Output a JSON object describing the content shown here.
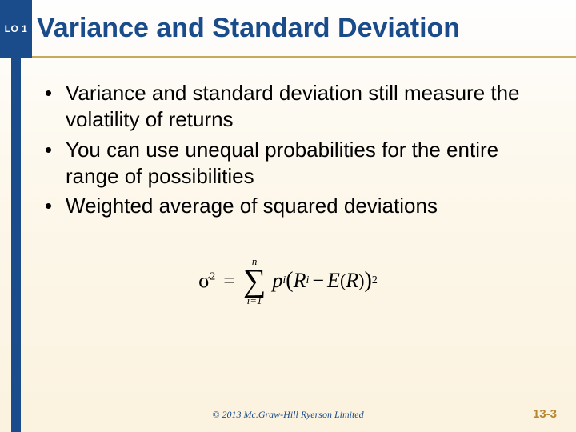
{
  "colors": {
    "accent_blue": "#1a4c8b",
    "accent_gold": "#c9a95a",
    "page_number_gold": "#b8862f",
    "text_black": "#000000",
    "bg_gradient_top": "#fefefe",
    "bg_gradient_bottom": "#fbf2df"
  },
  "lo_badge": "LO 1",
  "title": "Variance and Standard Deviation",
  "bullets": [
    "Variance and standard deviation still measure the volatility of returns",
    "You can use unequal probabilities for the entire range of possibilities",
    "Weighted average of squared deviations"
  ],
  "formula": {
    "lhs": "σ",
    "lhs_exp": "2",
    "sum_upper": "n",
    "sum_lower": "i=1",
    "p": "p",
    "p_sub": "i",
    "R": "R",
    "R_sub": "i",
    "minus": "−",
    "E": "E",
    "E_arg": "R",
    "outer_exp": "2"
  },
  "copyright": "© 2013 Mc.Graw-Hill Ryerson Limited",
  "page_number": "13-3"
}
